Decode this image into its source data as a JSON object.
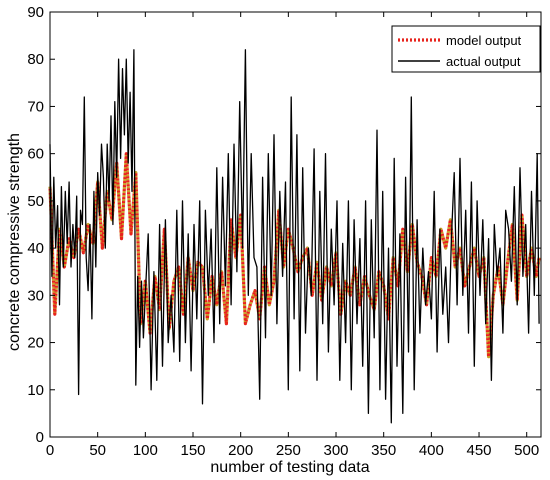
{
  "chart_data": {
    "type": "line",
    "title": "",
    "xlabel": "number of testing data",
    "ylabel": "concrete compressive strength",
    "xlim": [
      0,
      515
    ],
    "ylim": [
      0,
      90
    ],
    "xticks": [
      0,
      50,
      100,
      150,
      200,
      250,
      300,
      350,
      400,
      450,
      500
    ],
    "yticks": [
      0,
      10,
      20,
      30,
      40,
      50,
      60,
      70,
      80,
      90
    ],
    "grid": false,
    "legend": "top-right",
    "colors": {
      "model": "#e8231c",
      "model_accent": "#c9a12a",
      "actual": "#000000"
    },
    "series": [
      {
        "name": "model output",
        "style": "dotted",
        "x": [
          0,
          5,
          10,
          15,
          20,
          25,
          30,
          35,
          40,
          45,
          50,
          55,
          60,
          65,
          70,
          75,
          80,
          85,
          90,
          95,
          100,
          105,
          110,
          115,
          120,
          125,
          130,
          135,
          140,
          145,
          150,
          155,
          160,
          165,
          170,
          175,
          180,
          185,
          190,
          195,
          200,
          205,
          210,
          215,
          220,
          225,
          230,
          235,
          240,
          245,
          250,
          255,
          260,
          265,
          270,
          275,
          280,
          285,
          290,
          295,
          300,
          305,
          310,
          315,
          320,
          325,
          330,
          335,
          340,
          345,
          350,
          355,
          360,
          365,
          370,
          375,
          380,
          385,
          390,
          395,
          400,
          405,
          410,
          415,
          420,
          425,
          430,
          435,
          440,
          445,
          450,
          455,
          460,
          465,
          470,
          475,
          480,
          485,
          490,
          495,
          500,
          505,
          510,
          513
        ],
        "y": [
          53,
          26,
          44,
          36,
          42,
          38,
          44,
          39,
          45,
          41,
          54,
          40,
          52,
          46,
          58,
          42,
          60,
          43,
          56,
          24,
          33,
          22,
          34,
          27,
          44,
          23,
          33,
          36,
          26,
          38,
          31,
          37,
          36,
          25,
          34,
          28,
          35,
          24,
          46,
          38,
          47,
          24,
          28,
          31,
          25,
          36,
          28,
          33,
          48,
          36,
          44,
          40,
          35,
          38,
          40,
          30,
          37,
          29,
          36,
          32,
          39,
          26,
          33,
          30,
          36,
          28,
          34,
          30,
          27,
          35,
          32,
          25,
          38,
          32,
          44,
          35,
          45,
          37,
          34,
          28,
          38,
          34,
          44,
          40,
          46,
          36,
          40,
          32,
          36,
          40,
          34,
          38,
          17,
          30,
          36,
          28,
          37,
          45,
          29,
          47,
          34,
          40,
          34,
          38
        ]
      },
      {
        "name": "actual output",
        "style": "solid",
        "x": [
          0,
          2,
          4,
          6,
          8,
          10,
          12,
          14,
          16,
          18,
          20,
          22,
          24,
          26,
          28,
          30,
          32,
          34,
          36,
          38,
          40,
          42,
          44,
          46,
          48,
          50,
          52,
          54,
          56,
          58,
          60,
          62,
          64,
          66,
          68,
          70,
          72,
          74,
          76,
          78,
          80,
          82,
          84,
          86,
          88,
          90,
          92,
          94,
          96,
          98,
          100,
          103,
          106,
          109,
          112,
          115,
          118,
          121,
          124,
          127,
          130,
          133,
          136,
          139,
          142,
          145,
          148,
          151,
          154,
          157,
          160,
          163,
          166,
          169,
          172,
          175,
          178,
          181,
          184,
          187,
          190,
          193,
          196,
          199,
          202,
          205,
          208,
          211,
          214,
          217,
          220,
          223,
          226,
          229,
          232,
          235,
          238,
          241,
          244,
          247,
          250,
          253,
          256,
          259,
          262,
          265,
          268,
          271,
          274,
          277,
          280,
          283,
          286,
          289,
          292,
          295,
          298,
          301,
          304,
          307,
          310,
          313,
          316,
          319,
          322,
          325,
          328,
          331,
          334,
          337,
          340,
          343,
          346,
          349,
          352,
          355,
          358,
          361,
          364,
          367,
          370,
          373,
          376,
          379,
          382,
          385,
          388,
          391,
          394,
          397,
          400,
          403,
          406,
          409,
          412,
          415,
          418,
          421,
          424,
          427,
          430,
          433,
          436,
          439,
          442,
          445,
          448,
          451,
          454,
          457,
          460,
          463,
          466,
          469,
          472,
          475,
          478,
          481,
          484,
          487,
          490,
          493,
          496,
          499,
          502,
          505,
          508,
          511,
          513
        ],
        "y": [
          62,
          34,
          55,
          40,
          49,
          28,
          53,
          36,
          52,
          41,
          54,
          36,
          45,
          38,
          51,
          9,
          48,
          45,
          72,
          38,
          31,
          45,
          25,
          52,
          36,
          56,
          47,
          62,
          55,
          40,
          62,
          50,
          68,
          45,
          71,
          55,
          80,
          59,
          78,
          64,
          80,
          58,
          73,
          52,
          82,
          11,
          34,
          19,
          33,
          21,
          30,
          43,
          10,
          35,
          12,
          45,
          15,
          46,
          20,
          30,
          18,
          48,
          16,
          50,
          20,
          43,
          14,
          45,
          25,
          50,
          7,
          48,
          30,
          44,
          20,
          57,
          24,
          55,
          32,
          60,
          28,
          62,
          35,
          71,
          40,
          82,
          30,
          60,
          38,
          36,
          8,
          55,
          21,
          60,
          30,
          64,
          24,
          52,
          34,
          54,
          10,
          72,
          25,
          64,
          14,
          57,
          22,
          40,
          30,
          61,
          12,
          52,
          24,
          60,
          18,
          44,
          28,
          50,
          12,
          41,
          20,
          50,
          10,
          46,
          24,
          42,
          15,
          50,
          5,
          46,
          21,
          65,
          10,
          52,
          8,
          40,
          3,
          59,
          15,
          43,
          5,
          55,
          18,
          72,
          10,
          46,
          22,
          40,
          28,
          35,
          25,
          52,
          18,
          44,
          26,
          36,
          20,
          42,
          56,
          28,
          59,
          30,
          48,
          22,
          54,
          15,
          50,
          30,
          46,
          24,
          42,
          12,
          45,
          34,
          40,
          22,
          48,
          44,
          33,
          53,
          28,
          57,
          34,
          45,
          22,
          52,
          30,
          60,
          24
        ]
      }
    ]
  }
}
